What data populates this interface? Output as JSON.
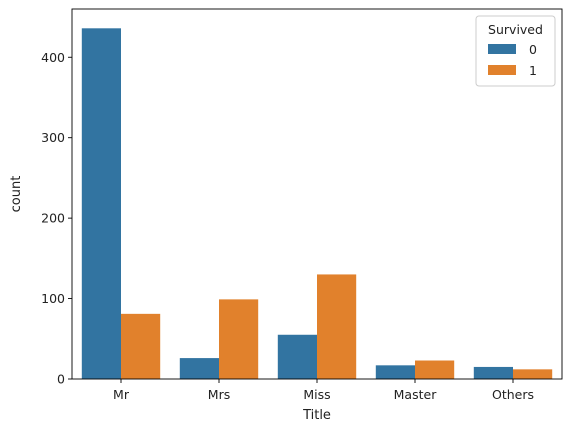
{
  "chart_data": {
    "type": "bar",
    "xlabel": "Title",
    "ylabel": "count",
    "categories": [
      "Mr",
      "Mrs",
      "Miss",
      "Master",
      "Others"
    ],
    "ylim": [
      0,
      460
    ],
    "yticks": [
      0,
      100,
      200,
      300,
      400
    ],
    "series": [
      {
        "name": "0",
        "color": "#3274a1",
        "values": [
          436,
          26,
          55,
          17,
          15
        ]
      },
      {
        "name": "1",
        "color": "#e1812c",
        "values": [
          81,
          99,
          130,
          23,
          12
        ]
      }
    ],
    "legend": {
      "title": "Survived",
      "position": "top-right"
    },
    "grid": false
  }
}
